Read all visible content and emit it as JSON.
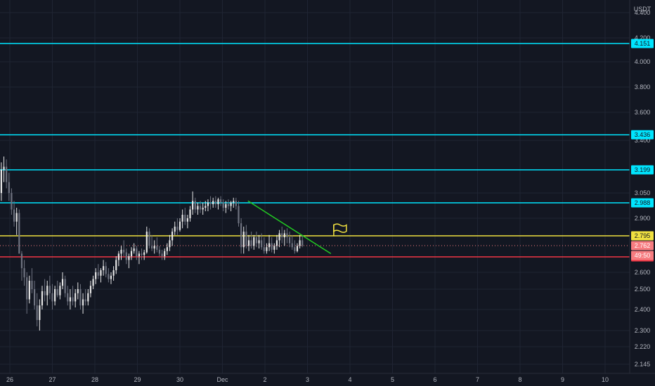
{
  "chart_data": {
    "type": "candlestick",
    "currency": "USDT",
    "x_tick_labels": [
      "26",
      "27",
      "28",
      "29",
      "30",
      "Dec",
      "2",
      "3",
      "4",
      "5",
      "6",
      "7",
      "8",
      "9",
      "10"
    ],
    "y_tick_labels": [
      "2.145",
      "2.220",
      "2.300",
      "2.400",
      "2.500",
      "2.600",
      "2.900",
      "3.050",
      "3.400",
      "3.600",
      "3.800",
      "4.000",
      "4.200",
      "4.400"
    ],
    "horizontal_levels": [
      {
        "value": "4.151",
        "color": "#00e5ff"
      },
      {
        "value": "3.436",
        "color": "#00e5ff"
      },
      {
        "value": "3.199",
        "color": "#00e5ff"
      },
      {
        "value": "2.988",
        "color": "#00e5ff"
      },
      {
        "value": "2.795",
        "color": "#f0e040"
      },
      {
        "value": "2.675",
        "color": "#f23645"
      }
    ],
    "price_badges": [
      {
        "text": "2.762",
        "color": "#f77c80"
      },
      {
        "text": "49:50",
        "color": "#f77c80"
      }
    ],
    "current_price": 2.762,
    "trendline": {
      "color": "#22cc22",
      "from": {
        "day": 1.6,
        "price": 3.0
      },
      "to": {
        "day": 3.55,
        "price": 2.7
      }
    },
    "flag_marker": {
      "color": "#f0e040",
      "icon": "flag-icon",
      "day": 3.75,
      "price": 2.83
    },
    "candles": [
      [
        25.8,
        3.05,
        3.25,
        3.0,
        3.2
      ],
      [
        25.86,
        3.2,
        3.29,
        3.12,
        3.22
      ],
      [
        25.92,
        3.22,
        3.27,
        3.08,
        3.12
      ],
      [
        25.98,
        3.12,
        3.18,
        3.0,
        3.05
      ],
      [
        26.04,
        3.05,
        3.08,
        2.92,
        2.95
      ],
      [
        26.1,
        2.95,
        3.0,
        2.85,
        2.88
      ],
      [
        26.16,
        2.88,
        2.96,
        2.8,
        2.93
      ],
      [
        26.22,
        2.93,
        2.95,
        2.7,
        2.7
      ],
      [
        26.28,
        2.7,
        2.72,
        2.55,
        2.62
      ],
      [
        26.34,
        2.62,
        2.66,
        2.52,
        2.57
      ],
      [
        26.4,
        2.57,
        2.6,
        2.38,
        2.45
      ],
      [
        26.46,
        2.45,
        2.58,
        2.43,
        2.55
      ],
      [
        26.52,
        2.55,
        2.62,
        2.48,
        2.5
      ],
      [
        26.58,
        2.5,
        2.55,
        2.4,
        2.42
      ],
      [
        26.64,
        2.42,
        2.48,
        2.32,
        2.35
      ],
      [
        26.7,
        2.35,
        2.45,
        2.3,
        2.42
      ],
      [
        26.76,
        2.42,
        2.52,
        2.4,
        2.49
      ],
      [
        26.82,
        2.49,
        2.56,
        2.44,
        2.47
      ],
      [
        26.88,
        2.47,
        2.55,
        2.42,
        2.52
      ],
      [
        26.94,
        2.52,
        2.58,
        2.45,
        2.48
      ],
      [
        27.0,
        2.48,
        2.53,
        2.4,
        2.44
      ],
      [
        27.06,
        2.44,
        2.52,
        2.42,
        2.5
      ],
      [
        27.12,
        2.5,
        2.55,
        2.46,
        2.47
      ],
      [
        27.18,
        2.47,
        2.54,
        2.45,
        2.52
      ],
      [
        27.24,
        2.52,
        2.6,
        2.5,
        2.56
      ],
      [
        27.3,
        2.56,
        2.58,
        2.46,
        2.48
      ],
      [
        27.36,
        2.48,
        2.52,
        2.42,
        2.44
      ],
      [
        27.42,
        2.44,
        2.5,
        2.4,
        2.46
      ],
      [
        27.48,
        2.46,
        2.52,
        2.42,
        2.44
      ],
      [
        27.54,
        2.44,
        2.5,
        2.41,
        2.48
      ],
      [
        27.6,
        2.48,
        2.54,
        2.45,
        2.5
      ],
      [
        27.66,
        2.5,
        2.53,
        2.4,
        2.42
      ],
      [
        27.72,
        2.42,
        2.48,
        2.38,
        2.45
      ],
      [
        27.78,
        2.45,
        2.5,
        2.42,
        2.44
      ],
      [
        27.84,
        2.44,
        2.5,
        2.42,
        2.48
      ],
      [
        27.9,
        2.48,
        2.55,
        2.46,
        2.52
      ],
      [
        27.96,
        2.52,
        2.58,
        2.5,
        2.56
      ],
      [
        28.02,
        2.56,
        2.62,
        2.53,
        2.6
      ],
      [
        28.08,
        2.6,
        2.64,
        2.56,
        2.58
      ],
      [
        28.14,
        2.58,
        2.62,
        2.54,
        2.61
      ],
      [
        28.2,
        2.61,
        2.66,
        2.58,
        2.63
      ],
      [
        28.26,
        2.63,
        2.65,
        2.57,
        2.59
      ],
      [
        28.32,
        2.59,
        2.62,
        2.54,
        2.56
      ],
      [
        28.38,
        2.56,
        2.6,
        2.53,
        2.58
      ],
      [
        28.44,
        2.58,
        2.63,
        2.55,
        2.61
      ],
      [
        28.5,
        2.61,
        2.68,
        2.59,
        2.66
      ],
      [
        28.56,
        2.66,
        2.72,
        2.63,
        2.7
      ],
      [
        28.62,
        2.7,
        2.76,
        2.66,
        2.73
      ],
      [
        28.68,
        2.73,
        2.78,
        2.68,
        2.71
      ],
      [
        28.74,
        2.71,
        2.74,
        2.64,
        2.66
      ],
      [
        28.8,
        2.66,
        2.7,
        2.62,
        2.68
      ],
      [
        28.86,
        2.68,
        2.75,
        2.66,
        2.72
      ],
      [
        28.92,
        2.72,
        2.77,
        2.7,
        2.74
      ],
      [
        28.98,
        2.74,
        2.76,
        2.66,
        2.68
      ],
      [
        29.04,
        2.68,
        2.72,
        2.64,
        2.7
      ],
      [
        29.1,
        2.7,
        2.74,
        2.66,
        2.69
      ],
      [
        29.16,
        2.69,
        2.73,
        2.66,
        2.71
      ],
      [
        29.22,
        2.71,
        2.85,
        2.7,
        2.82
      ],
      [
        29.28,
        2.82,
        2.84,
        2.74,
        2.76
      ],
      [
        29.34,
        2.76,
        2.8,
        2.72,
        2.74
      ],
      [
        29.4,
        2.74,
        2.78,
        2.7,
        2.76
      ],
      [
        29.46,
        2.76,
        2.79,
        2.71,
        2.73
      ],
      [
        29.52,
        2.73,
        2.76,
        2.68,
        2.7
      ],
      [
        29.58,
        2.7,
        2.73,
        2.66,
        2.68
      ],
      [
        29.64,
        2.68,
        2.74,
        2.66,
        2.72
      ],
      [
        29.7,
        2.72,
        2.77,
        2.69,
        2.75
      ],
      [
        29.76,
        2.75,
        2.8,
        2.72,
        2.78
      ],
      [
        29.82,
        2.78,
        2.84,
        2.76,
        2.82
      ],
      [
        29.88,
        2.82,
        2.88,
        2.8,
        2.85
      ],
      [
        29.94,
        2.85,
        2.9,
        2.8,
        2.83
      ],
      [
        30.0,
        2.83,
        2.9,
        2.82,
        2.88
      ],
      [
        30.06,
        2.88,
        2.95,
        2.84,
        2.92
      ],
      [
        30.12,
        2.92,
        2.96,
        2.86,
        2.88
      ],
      [
        30.18,
        2.88,
        2.92,
        2.84,
        2.9
      ],
      [
        30.24,
        2.9,
        2.97,
        2.88,
        2.95
      ],
      [
        30.3,
        2.95,
        3.06,
        2.92,
        3.0
      ],
      [
        30.36,
        3.0,
        3.02,
        2.93,
        2.95
      ],
      [
        30.42,
        2.95,
        2.99,
        2.92,
        2.97
      ],
      [
        30.48,
        2.97,
        3.0,
        2.93,
        2.95
      ],
      [
        30.54,
        2.95,
        2.99,
        2.92,
        2.96
      ],
      [
        30.6,
        2.96,
        3.0,
        2.94,
        2.97
      ],
      [
        30.66,
        2.97,
        3.01,
        2.94,
        2.99
      ],
      [
        30.72,
        2.99,
        3.03,
        2.95,
        2.98
      ],
      [
        30.78,
        2.98,
        3.02,
        2.96,
        3.0
      ],
      [
        30.84,
        3.0,
        3.03,
        2.96,
        2.98
      ],
      [
        30.9,
        2.98,
        3.02,
        2.95,
        3.01
      ],
      [
        30.96,
        3.01,
        3.03,
        2.97,
        2.99
      ],
      [
        31.02,
        2.99,
        3.01,
        2.94,
        2.96
      ],
      [
        31.08,
        2.96,
        3.0,
        2.93,
        2.98
      ],
      [
        31.14,
        2.98,
        3.01,
        2.95,
        2.97
      ],
      [
        31.2,
        2.97,
        3.0,
        2.94,
        2.99
      ],
      [
        31.26,
        2.99,
        3.02,
        2.96,
        3.0
      ],
      [
        31.32,
        3.0,
        3.02,
        2.95,
        2.97
      ],
      [
        31.38,
        2.97,
        3.0,
        2.85,
        2.87
      ],
      [
        31.44,
        2.87,
        2.9,
        2.7,
        2.75
      ],
      [
        31.5,
        2.75,
        2.85,
        2.7,
        2.82
      ],
      [
        31.56,
        2.82,
        2.86,
        2.74,
        2.76
      ],
      [
        31.62,
        2.76,
        2.8,
        2.72,
        2.78
      ],
      [
        31.68,
        2.78,
        2.82,
        2.74,
        2.76
      ],
      [
        31.74,
        2.76,
        2.8,
        2.73,
        2.79
      ],
      [
        31.8,
        2.79,
        2.82,
        2.75,
        2.77
      ],
      [
        31.86,
        2.77,
        2.8,
        2.74,
        2.78
      ],
      [
        31.92,
        2.78,
        2.81,
        2.73,
        2.75
      ],
      [
        31.98,
        2.75,
        2.79,
        2.7,
        2.72
      ],
      [
        32.04,
        2.72,
        2.77,
        2.7,
        2.75
      ],
      [
        32.1,
        2.75,
        2.8,
        2.72,
        2.77
      ],
      [
        32.16,
        2.77,
        2.79,
        2.71,
        2.73
      ],
      [
        32.22,
        2.73,
        2.77,
        2.7,
        2.76
      ],
      [
        32.28,
        2.76,
        2.8,
        2.73,
        2.78
      ],
      [
        32.34,
        2.78,
        2.83,
        2.75,
        2.81
      ],
      [
        32.4,
        2.81,
        2.85,
        2.77,
        2.79
      ],
      [
        32.46,
        2.79,
        2.83,
        2.76,
        2.81
      ],
      [
        32.52,
        2.81,
        2.84,
        2.77,
        2.79
      ],
      [
        32.58,
        2.79,
        2.82,
        2.75,
        2.77
      ],
      [
        32.64,
        2.77,
        2.8,
        2.73,
        2.75
      ],
      [
        32.7,
        2.75,
        2.78,
        2.7,
        2.72
      ],
      [
        32.76,
        2.72,
        2.77,
        2.71,
        2.76
      ],
      [
        32.82,
        2.76,
        2.8,
        2.74,
        2.78
      ],
      [
        32.88,
        2.78,
        2.8,
        2.75,
        2.762
      ]
    ]
  }
}
